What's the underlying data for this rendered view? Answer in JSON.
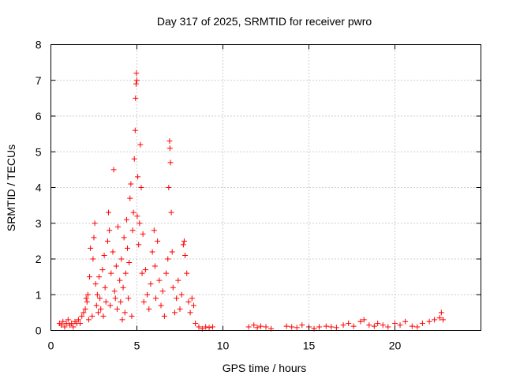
{
  "chart_data": {
    "type": "scatter",
    "title": "Day 317 of 2025, SRMTID for receiver pwro",
    "xlabel": "GPS time / hours",
    "ylabel": "SRMTID / TECUs",
    "xlim": [
      0,
      25
    ],
    "ylim": [
      0,
      8
    ],
    "xticks": [
      0,
      5,
      10,
      15,
      20
    ],
    "yticks": [
      0,
      1,
      2,
      3,
      4,
      5,
      6,
      7,
      8
    ],
    "grid": true,
    "marker": "plus",
    "series": [
      {
        "name": "SRMTID",
        "color": "#ff0000",
        "points": [
          [
            0.5,
            0.2
          ],
          [
            0.6,
            0.15
          ],
          [
            0.7,
            0.25
          ],
          [
            0.8,
            0.1
          ],
          [
            0.9,
            0.2
          ],
          [
            1.0,
            0.3
          ],
          [
            1.1,
            0.15
          ],
          [
            1.2,
            0.2
          ],
          [
            1.3,
            0.1
          ],
          [
            1.4,
            0.25
          ],
          [
            1.5,
            0.2
          ],
          [
            1.6,
            0.3
          ],
          [
            1.7,
            0.2
          ],
          [
            1.8,
            0.4
          ],
          [
            1.9,
            0.5
          ],
          [
            2.0,
            0.6
          ],
          [
            2.05,
            0.9
          ],
          [
            2.1,
            0.8
          ],
          [
            2.15,
            1.0
          ],
          [
            2.2,
            0.3
          ],
          [
            2.25,
            1.5
          ],
          [
            2.3,
            2.3
          ],
          [
            2.4,
            0.4
          ],
          [
            2.45,
            2.0
          ],
          [
            2.5,
            2.6
          ],
          [
            2.55,
            3.0
          ],
          [
            2.6,
            1.3
          ],
          [
            2.65,
            0.7
          ],
          [
            2.7,
            1.0
          ],
          [
            2.75,
            0.5
          ],
          [
            2.8,
            1.5
          ],
          [
            2.85,
            0.9
          ],
          [
            2.9,
            0.6
          ],
          [
            3.0,
            1.7
          ],
          [
            3.05,
            0.4
          ],
          [
            3.1,
            2.1
          ],
          [
            3.15,
            1.2
          ],
          [
            3.2,
            0.8
          ],
          [
            3.3,
            2.5
          ],
          [
            3.35,
            3.3
          ],
          [
            3.4,
            2.8
          ],
          [
            3.45,
            0.7
          ],
          [
            3.5,
            1.6
          ],
          [
            3.6,
            2.2
          ],
          [
            3.65,
            4.5
          ],
          [
            3.7,
            1.1
          ],
          [
            3.75,
            0.9
          ],
          [
            3.8,
            1.8
          ],
          [
            3.85,
            0.6
          ],
          [
            3.9,
            2.9
          ],
          [
            4.0,
            1.4
          ],
          [
            4.05,
            0.8
          ],
          [
            4.1,
            2.0
          ],
          [
            4.15,
            0.3
          ],
          [
            4.2,
            1.2
          ],
          [
            4.25,
            2.6
          ],
          [
            4.3,
            0.5
          ],
          [
            4.35,
            1.6
          ],
          [
            4.4,
            3.1
          ],
          [
            4.45,
            2.3
          ],
          [
            4.5,
            0.9
          ],
          [
            4.55,
            1.9
          ],
          [
            4.6,
            3.7
          ],
          [
            4.65,
            4.1
          ],
          [
            4.7,
            0.4
          ],
          [
            4.75,
            2.8
          ],
          [
            4.8,
            3.3
          ],
          [
            4.85,
            4.8
          ],
          [
            4.9,
            5.6
          ],
          [
            4.92,
            6.5
          ],
          [
            4.95,
            6.9
          ],
          [
            4.97,
            7.2
          ],
          [
            5.0,
            7.0
          ],
          [
            5.02,
            3.2
          ],
          [
            5.05,
            4.3
          ],
          [
            5.1,
            2.4
          ],
          [
            5.15,
            3.0
          ],
          [
            5.2,
            5.2
          ],
          [
            5.25,
            4.0
          ],
          [
            5.3,
            1.6
          ],
          [
            5.35,
            2.7
          ],
          [
            5.4,
            0.8
          ],
          [
            5.5,
            1.7
          ],
          [
            5.6,
            1.0
          ],
          [
            5.7,
            0.6
          ],
          [
            5.8,
            1.3
          ],
          [
            5.9,
            2.2
          ],
          [
            6.0,
            2.8
          ],
          [
            6.05,
            1.8
          ],
          [
            6.1,
            0.9
          ],
          [
            6.2,
            2.5
          ],
          [
            6.3,
            1.4
          ],
          [
            6.4,
            0.7
          ],
          [
            6.5,
            1.1
          ],
          [
            6.6,
            0.4
          ],
          [
            6.7,
            1.6
          ],
          [
            6.8,
            2.0
          ],
          [
            6.85,
            4.0
          ],
          [
            6.9,
            5.3
          ],
          [
            6.92,
            5.1
          ],
          [
            6.95,
            4.7
          ],
          [
            7.0,
            3.3
          ],
          [
            7.05,
            2.2
          ],
          [
            7.1,
            1.2
          ],
          [
            7.2,
            0.5
          ],
          [
            7.3,
            0.9
          ],
          [
            7.4,
            1.4
          ],
          [
            7.5,
            0.6
          ],
          [
            7.6,
            1.0
          ],
          [
            7.7,
            2.4
          ],
          [
            7.75,
            2.5
          ],
          [
            7.8,
            2.1
          ],
          [
            7.9,
            1.6
          ],
          [
            8.0,
            0.8
          ],
          [
            8.1,
            0.5
          ],
          [
            8.2,
            0.9
          ],
          [
            8.3,
            0.7
          ],
          [
            8.4,
            0.2
          ],
          [
            8.6,
            0.1
          ],
          [
            8.8,
            0.05
          ],
          [
            9.0,
            0.1
          ],
          [
            9.2,
            0.08
          ],
          [
            9.4,
            0.1
          ],
          [
            11.5,
            0.1
          ],
          [
            11.8,
            0.15
          ],
          [
            12.0,
            0.08
          ],
          [
            12.2,
            0.12
          ],
          [
            12.5,
            0.1
          ],
          [
            12.8,
            0.05
          ],
          [
            13.7,
            0.12
          ],
          [
            14.0,
            0.1
          ],
          [
            14.3,
            0.08
          ],
          [
            14.6,
            0.15
          ],
          [
            15.0,
            0.1
          ],
          [
            15.3,
            0.05
          ],
          [
            15.6,
            0.1
          ],
          [
            16.0,
            0.12
          ],
          [
            16.3,
            0.1
          ],
          [
            16.6,
            0.08
          ],
          [
            17.0,
            0.15
          ],
          [
            17.3,
            0.2
          ],
          [
            17.6,
            0.12
          ],
          [
            18.0,
            0.25
          ],
          [
            18.2,
            0.3
          ],
          [
            18.5,
            0.15
          ],
          [
            18.8,
            0.12
          ],
          [
            19.0,
            0.2
          ],
          [
            19.3,
            0.15
          ],
          [
            19.6,
            0.1
          ],
          [
            20.0,
            0.2
          ],
          [
            20.3,
            0.15
          ],
          [
            20.6,
            0.25
          ],
          [
            21.0,
            0.12
          ],
          [
            21.3,
            0.1
          ],
          [
            21.6,
            0.2
          ],
          [
            22.0,
            0.25
          ],
          [
            22.3,
            0.3
          ],
          [
            22.6,
            0.35
          ],
          [
            22.7,
            0.5
          ],
          [
            22.8,
            0.3
          ]
        ]
      }
    ]
  }
}
